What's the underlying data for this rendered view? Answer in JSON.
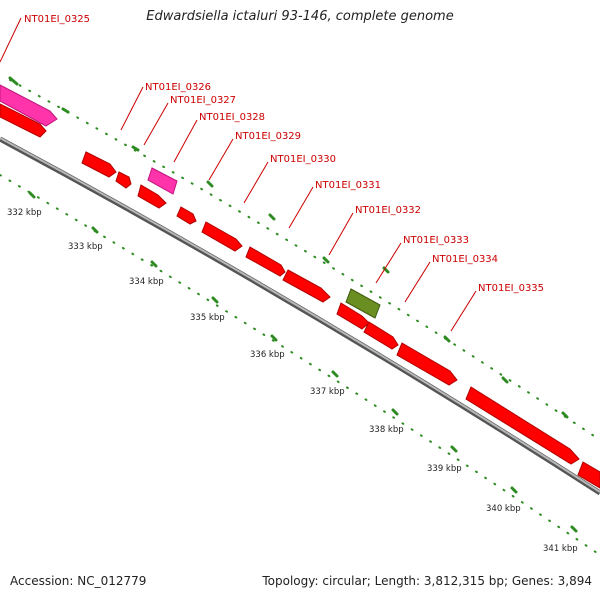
{
  "title": "Edwardsiella ictaluri 93-146, complete genome",
  "footer": {
    "accession": "Accession: NC_012779",
    "topology": "Topology: circular; Length: 3,812,315 bp; Genes: 3,894"
  },
  "colors": {
    "backbone": "#8c8c8c",
    "gene_red": "#ff0000",
    "gene_pink": "#ff33aa",
    "gene_olive": "#6b8e23",
    "tick_green": "#2e8b22",
    "label_red": "#cc0000"
  },
  "scale_labels": [
    "332 kbp",
    "333 kbp",
    "334 kbp",
    "335 kbp",
    "336 kbp",
    "337 kbp",
    "338 kbp",
    "339 kbp",
    "340 kbp",
    "341 kbp"
  ],
  "gene_labels": [
    "NT01EI_0325",
    "NT01EI_0326",
    "NT01EI_0327",
    "NT01EI_0328",
    "NT01EI_0329",
    "NT01EI_0330",
    "NT01EI_0331",
    "NT01EI_0332",
    "NT01EI_0333",
    "NT01EI_0334",
    "NT01EI_0335"
  ]
}
